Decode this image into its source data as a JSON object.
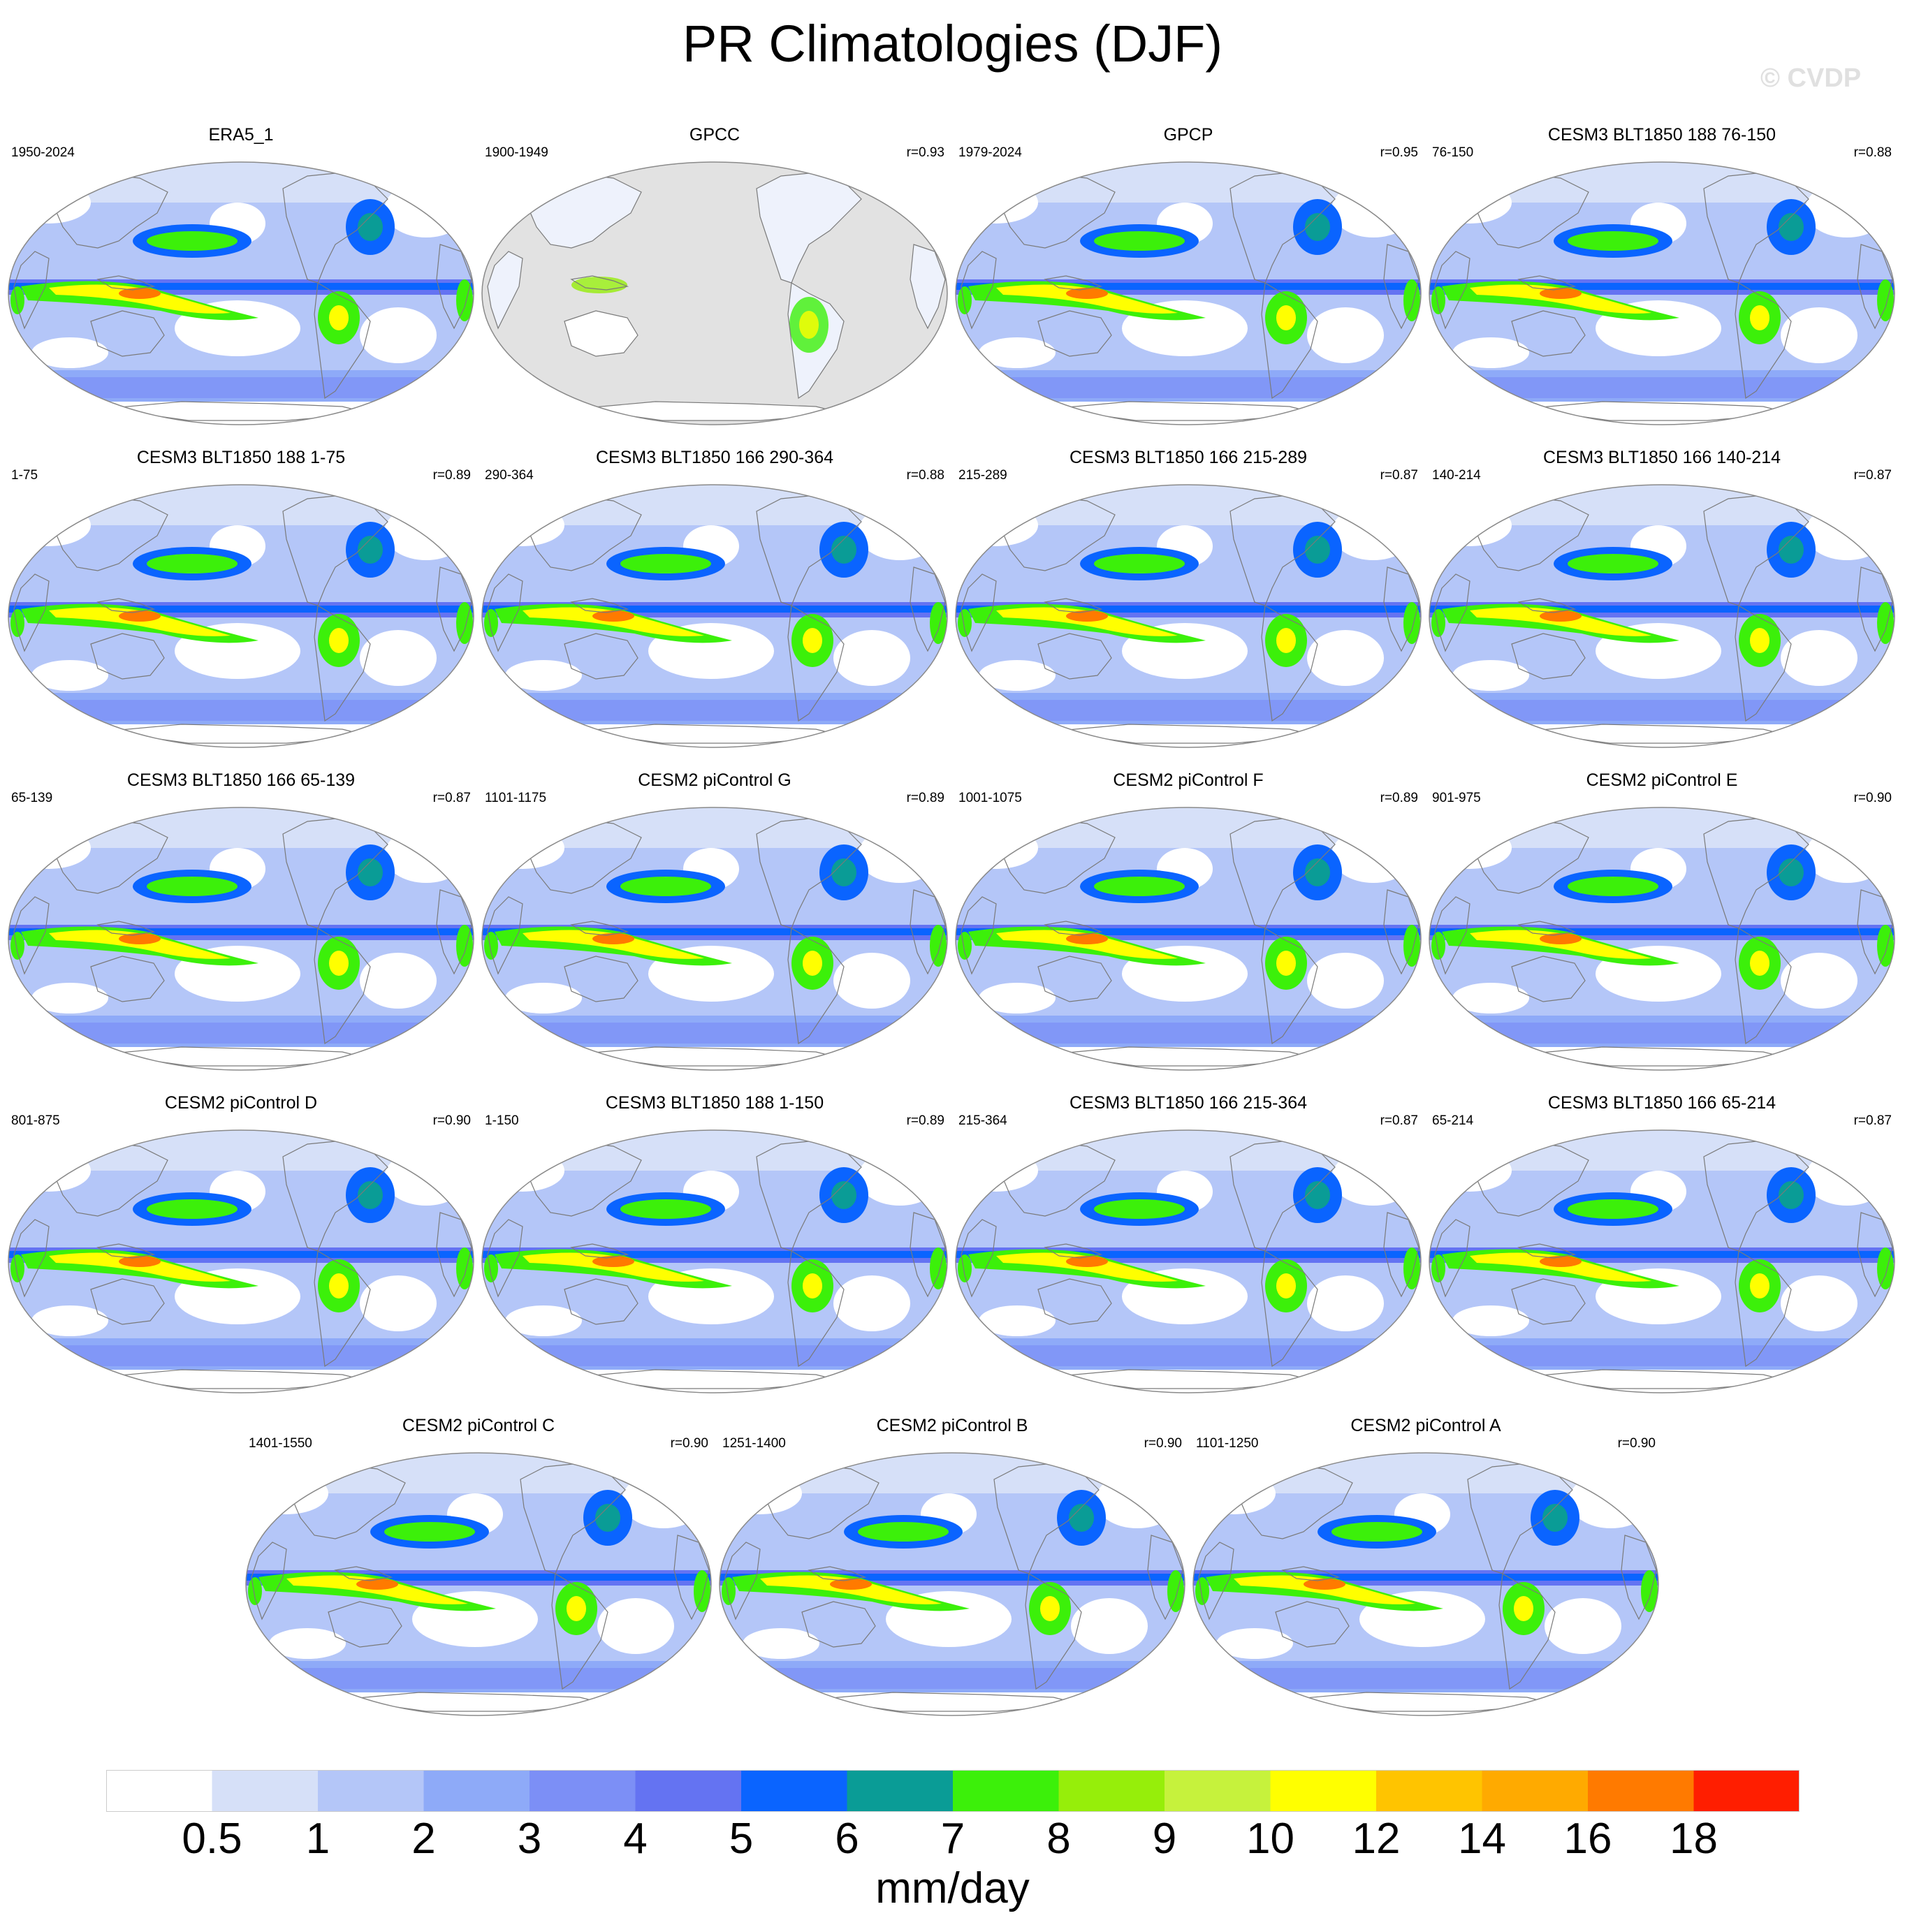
{
  "title": "PR Climatologies (DJF)",
  "watermark": "© CVDP",
  "chart_data": {
    "type": "heatmap",
    "title": "PR Climatologies (DJF)",
    "units": "mm/day",
    "colorbar": {
      "levels": [
        "0.5",
        "1",
        "2",
        "3",
        "4",
        "5",
        "6",
        "7",
        "8",
        "9",
        "10",
        "12",
        "14",
        "16",
        "18"
      ],
      "colors": [
        "#ffffff",
        "#d6e0f8",
        "#b4c6f8",
        "#8eaaf8",
        "#7c8ff6",
        "#6473f2",
        "#0a64ff",
        "#0a9c96",
        "#3cf00a",
        "#96ee0a",
        "#c6f23c",
        "#ffff00",
        "#ffc400",
        "#ffaa00",
        "#ff7a00",
        "#ff1e00"
      ]
    },
    "panels": [
      {
        "name": "ERA5_1",
        "years": "1950-2024",
        "r": "",
        "masked_ocean": false
      },
      {
        "name": "GPCC",
        "years": "1900-1949",
        "r": "r=0.93",
        "masked_ocean": true
      },
      {
        "name": "GPCP",
        "years": "1979-2024",
        "r": "r=0.95",
        "masked_ocean": false
      },
      {
        "name": "CESM3 BLT1850 188 76-150",
        "years": "76-150",
        "r": "r=0.88",
        "masked_ocean": false
      },
      {
        "name": "CESM3 BLT1850 188 1-75",
        "years": "1-75",
        "r": "r=0.89",
        "masked_ocean": false
      },
      {
        "name": "CESM3 BLT1850 166 290-364",
        "years": "290-364",
        "r": "r=0.88",
        "masked_ocean": false
      },
      {
        "name": "CESM3 BLT1850 166 215-289",
        "years": "215-289",
        "r": "r=0.87",
        "masked_ocean": false
      },
      {
        "name": "CESM3 BLT1850 166 140-214",
        "years": "140-214",
        "r": "r=0.87",
        "masked_ocean": false
      },
      {
        "name": "CESM3 BLT1850 166 65-139",
        "years": "65-139",
        "r": "r=0.87",
        "masked_ocean": false
      },
      {
        "name": "CESM2 piControl G",
        "years": "1101-1175",
        "r": "r=0.89",
        "masked_ocean": false
      },
      {
        "name": "CESM2 piControl F",
        "years": "1001-1075",
        "r": "r=0.89",
        "masked_ocean": false
      },
      {
        "name": "CESM2 piControl E",
        "years": "901-975",
        "r": "r=0.90",
        "masked_ocean": false
      },
      {
        "name": "CESM2 piControl D",
        "years": "801-875",
        "r": "r=0.90",
        "masked_ocean": false
      },
      {
        "name": "CESM3 BLT1850 188 1-150",
        "years": "1-150",
        "r": "r=0.89",
        "masked_ocean": false
      },
      {
        "name": "CESM3 BLT1850 166 215-364",
        "years": "215-364",
        "r": "r=0.87",
        "masked_ocean": false
      },
      {
        "name": "CESM3 BLT1850 166 65-214",
        "years": "65-214",
        "r": "r=0.87",
        "masked_ocean": false
      },
      {
        "name": "CESM2 piControl C",
        "years": "1401-1550",
        "r": "r=0.90",
        "masked_ocean": false
      },
      {
        "name": "CESM2 piControl B",
        "years": "1251-1400",
        "r": "r=0.90",
        "masked_ocean": false
      },
      {
        "name": "CESM2 piControl A",
        "years": "1101-1250",
        "r": "r=0.90",
        "masked_ocean": false
      }
    ]
  }
}
